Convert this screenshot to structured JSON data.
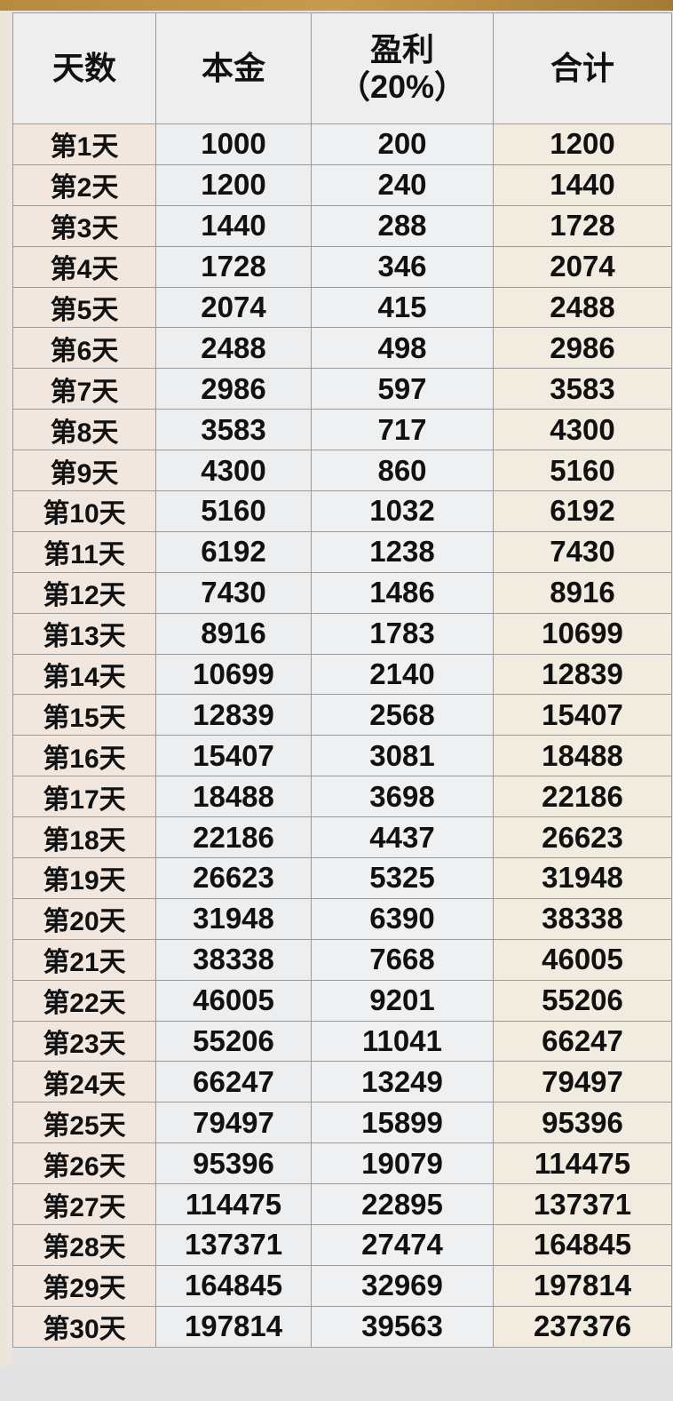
{
  "table": {
    "headers": [
      "天数",
      "本金",
      "盈利",
      "（20%）",
      "合计"
    ],
    "rows": [
      [
        "第1天",
        "1000",
        "200",
        "1200"
      ],
      [
        "第2天",
        "1200",
        "240",
        "1440"
      ],
      [
        "第3天",
        "1440",
        "288",
        "1728"
      ],
      [
        "第4天",
        "1728",
        "346",
        "2074"
      ],
      [
        "第5天",
        "2074",
        "415",
        "2488"
      ],
      [
        "第6天",
        "2488",
        "498",
        "2986"
      ],
      [
        "第7天",
        "2986",
        "597",
        "3583"
      ],
      [
        "第8天",
        "3583",
        "717",
        "4300"
      ],
      [
        "第9天",
        "4300",
        "860",
        "5160"
      ],
      [
        "第10天",
        "5160",
        "1032",
        "6192"
      ],
      [
        "第11天",
        "6192",
        "1238",
        "7430"
      ],
      [
        "第12天",
        "7430",
        "1486",
        "8916"
      ],
      [
        "第13天",
        "8916",
        "1783",
        "10699"
      ],
      [
        "第14天",
        "10699",
        "2140",
        "12839"
      ],
      [
        "第15天",
        "12839",
        "2568",
        "15407"
      ],
      [
        "第16天",
        "15407",
        "3081",
        "18488"
      ],
      [
        "第17天",
        "18488",
        "3698",
        "22186"
      ],
      [
        "第18天",
        "22186",
        "4437",
        "26623"
      ],
      [
        "第19天",
        "26623",
        "5325",
        "31948"
      ],
      [
        "第20天",
        "31948",
        "6390",
        "38338"
      ],
      [
        "第21天",
        "38338",
        "7668",
        "46005"
      ],
      [
        "第22天",
        "46005",
        "9201",
        "55206"
      ],
      [
        "第23天",
        "55206",
        "11041",
        "66247"
      ],
      [
        "第24天",
        "66247",
        "13249",
        "79497"
      ],
      [
        "第25天",
        "79497",
        "15899",
        "95396"
      ],
      [
        "第26天",
        "95396",
        "19079",
        "114475"
      ],
      [
        "第27天",
        "114475",
        "22895",
        "137371"
      ],
      [
        "第28天",
        "137371",
        "27474",
        "164845"
      ],
      [
        "第29天",
        "164845",
        "32969",
        "197814"
      ],
      [
        "第30天",
        "197814",
        "39563",
        "237376"
      ]
    ]
  }
}
